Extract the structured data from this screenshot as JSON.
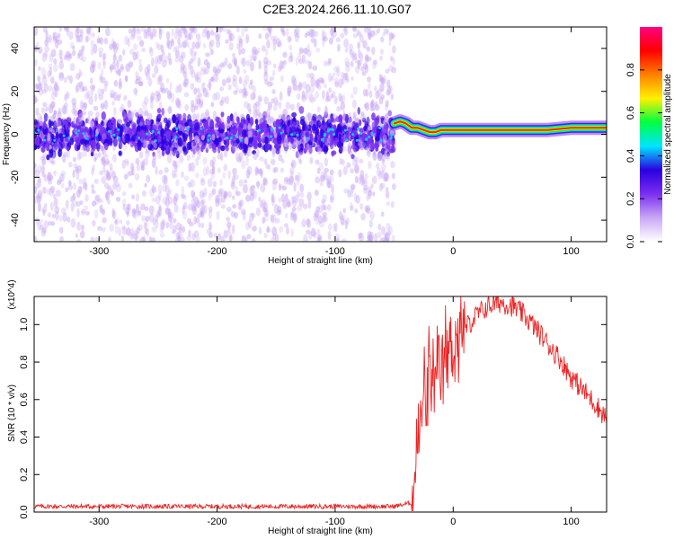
{
  "title": "C2E3.2024.266.11.10.G07",
  "chart_data": [
    {
      "type": "heatmap",
      "name": "spectrogram",
      "xlabel": "Height of straight line (km)",
      "ylabel": "Frequency (Hz)",
      "xlim": [
        -355,
        130
      ],
      "ylim": [
        -50,
        50
      ],
      "xticks": [
        -300,
        -200,
        -100,
        0,
        100
      ],
      "xtick_labels": [
        "-300",
        "-200",
        "-100",
        "0",
        "100"
      ],
      "yticks": [
        -40,
        -20,
        0,
        20,
        40
      ],
      "ytick_labels": [
        "-40",
        "-20",
        "0",
        "20",
        "40"
      ],
      "colorbar": {
        "label": "Normalized spectral amplitude",
        "range": [
          0,
          1
        ],
        "ticks": [
          0.0,
          0.2,
          0.4,
          0.6,
          0.8
        ],
        "tick_labels": [
          "0.0",
          "0.2",
          "0.4",
          "0.6",
          "0.8"
        ],
        "colors": [
          "#ffffff",
          "#c9a8f5",
          "#7b2ff0",
          "#2a00e0",
          "#00e5ff",
          "#00ff40",
          "#fff000",
          "#ff8000",
          "#ff0000",
          "#ff0080"
        ]
      },
      "noise_region": {
        "x_range": [
          -355,
          -50
        ],
        "freq_spread": 50,
        "core_spread": 8
      },
      "signal_track": [
        {
          "x": -50,
          "y": 5
        },
        {
          "x": -45,
          "y": 6
        },
        {
          "x": -40,
          "y": 5
        },
        {
          "x": -35,
          "y": 3
        },
        {
          "x": -30,
          "y": 3
        },
        {
          "x": -25,
          "y": 2
        },
        {
          "x": -20,
          "y": 1
        },
        {
          "x": -15,
          "y": 1
        },
        {
          "x": -10,
          "y": 2
        },
        {
          "x": -5,
          "y": 2
        },
        {
          "x": 0,
          "y": 2
        },
        {
          "x": 20,
          "y": 2
        },
        {
          "x": 40,
          "y": 2
        },
        {
          "x": 60,
          "y": 2
        },
        {
          "x": 80,
          "y": 2
        },
        {
          "x": 100,
          "y": 3
        },
        {
          "x": 115,
          "y": 3
        },
        {
          "x": 130,
          "y": 3
        }
      ]
    },
    {
      "type": "line",
      "name": "snr",
      "xlabel": "Height of straight line (km)",
      "ylabel": "SNR (10 * v/v)",
      "y_multiplier": "(x10^4)",
      "xlim": [
        -355,
        130
      ],
      "ylim": [
        0,
        1.15
      ],
      "xticks": [
        -300,
        -200,
        -100,
        0,
        100
      ],
      "xtick_labels": [
        "-300",
        "-200",
        "-100",
        "0",
        "100"
      ],
      "yticks": [
        0.0,
        0.2,
        0.4,
        0.6,
        0.8,
        1.0
      ],
      "ytick_labels": [
        "0.0",
        "0.2",
        "0.4",
        "0.6",
        "0.8",
        "1.0"
      ],
      "color": "#ee2222",
      "x": [
        -355,
        -50,
        -35,
        -30,
        -25,
        -20,
        -15,
        -10,
        -5,
        0,
        10,
        20,
        30,
        40,
        50,
        60,
        70,
        80,
        90,
        100,
        110,
        120,
        130
      ],
      "y": [
        0.03,
        0.03,
        0.05,
        0.35,
        0.6,
        0.72,
        0.65,
        0.75,
        0.85,
        0.9,
        0.98,
        1.05,
        1.1,
        1.12,
        1.1,
        1.05,
        0.98,
        0.9,
        0.82,
        0.72,
        0.65,
        0.58,
        0.5
      ]
    }
  ]
}
